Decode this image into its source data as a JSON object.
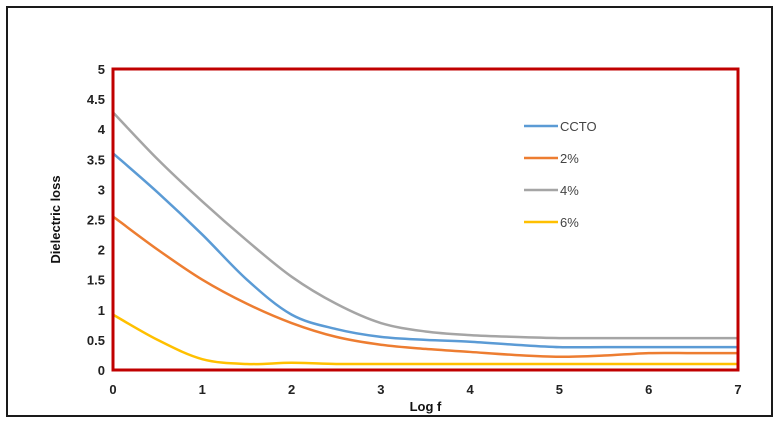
{
  "chart_data": {
    "type": "line",
    "xlabel": "Log f",
    "ylabel": "Dielectric loss",
    "xlim": [
      0,
      7
    ],
    "ylim": [
      0,
      5
    ],
    "xticks": [
      "0",
      "1",
      "2",
      "3",
      "4",
      "5",
      "6",
      "7"
    ],
    "yticks": [
      "0",
      "0.5",
      "1",
      "1.5",
      "2",
      "2.5",
      "3",
      "3.5",
      "4",
      "4.5",
      "5"
    ],
    "grid": false,
    "legend_position": "top-right",
    "plot_border_color": "#c00000",
    "series": [
      {
        "name": "CCTO",
        "color": "#5b9bd5",
        "x": [
          0,
          0.5,
          1,
          1.5,
          2,
          2.5,
          3,
          3.5,
          4,
          4.5,
          5,
          5.5,
          6,
          6.5,
          7
        ],
        "y": [
          3.6,
          2.95,
          2.25,
          1.5,
          0.92,
          0.68,
          0.55,
          0.5,
          0.47,
          0.42,
          0.38,
          0.38,
          0.38,
          0.38,
          0.38
        ]
      },
      {
        "name": "2%",
        "color": "#ed7d31",
        "x": [
          0,
          0.5,
          1,
          1.5,
          2,
          2.5,
          3,
          3.5,
          4,
          4.5,
          5,
          5.5,
          6,
          6.5,
          7
        ],
        "y": [
          2.55,
          2.0,
          1.5,
          1.1,
          0.78,
          0.55,
          0.42,
          0.35,
          0.3,
          0.25,
          0.22,
          0.24,
          0.28,
          0.28,
          0.28
        ]
      },
      {
        "name": "4%",
        "color": "#a5a5a5",
        "x": [
          0,
          0.5,
          1,
          1.5,
          2,
          2.5,
          3,
          3.5,
          4,
          4.5,
          5,
          5.5,
          6,
          6.5,
          7
        ],
        "y": [
          4.28,
          3.5,
          2.8,
          2.15,
          1.55,
          1.1,
          0.78,
          0.64,
          0.58,
          0.55,
          0.53,
          0.53,
          0.53,
          0.53,
          0.53
        ]
      },
      {
        "name": "6%",
        "color": "#ffc000",
        "x": [
          0,
          0.5,
          1,
          1.5,
          2,
          2.5,
          3,
          3.5,
          4,
          4.5,
          5,
          5.5,
          6,
          6.5,
          7
        ],
        "y": [
          0.92,
          0.5,
          0.18,
          0.1,
          0.12,
          0.1,
          0.1,
          0.1,
          0.1,
          0.1,
          0.1,
          0.1,
          0.1,
          0.1,
          0.1
        ]
      }
    ]
  }
}
